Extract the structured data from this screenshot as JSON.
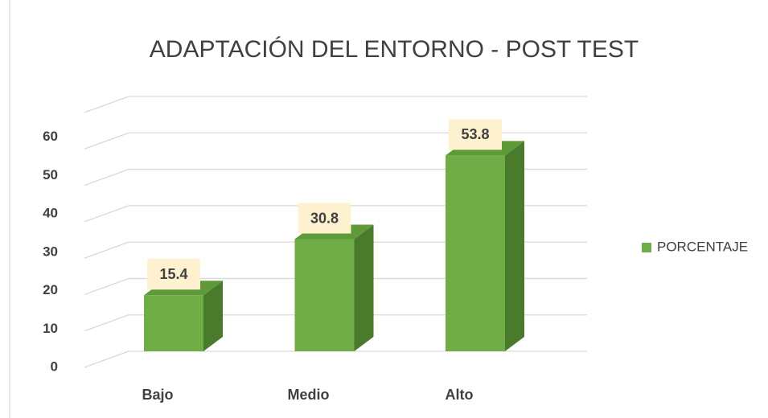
{
  "chart_data": {
    "type": "bar3d",
    "title": "ADAPTACIÓN DEL ENTORNO - POST TEST",
    "categories": [
      "Bajo",
      "Medio",
      "Alto"
    ],
    "series": [
      {
        "name": "PORCENTAJE",
        "color": "#70ad47",
        "values": [
          15.4,
          30.8,
          53.8
        ]
      }
    ],
    "ylim": [
      0,
      70
    ],
    "yticks": [
      0,
      10,
      20,
      30,
      40,
      50,
      60
    ],
    "grid": true,
    "legend": "right"
  }
}
